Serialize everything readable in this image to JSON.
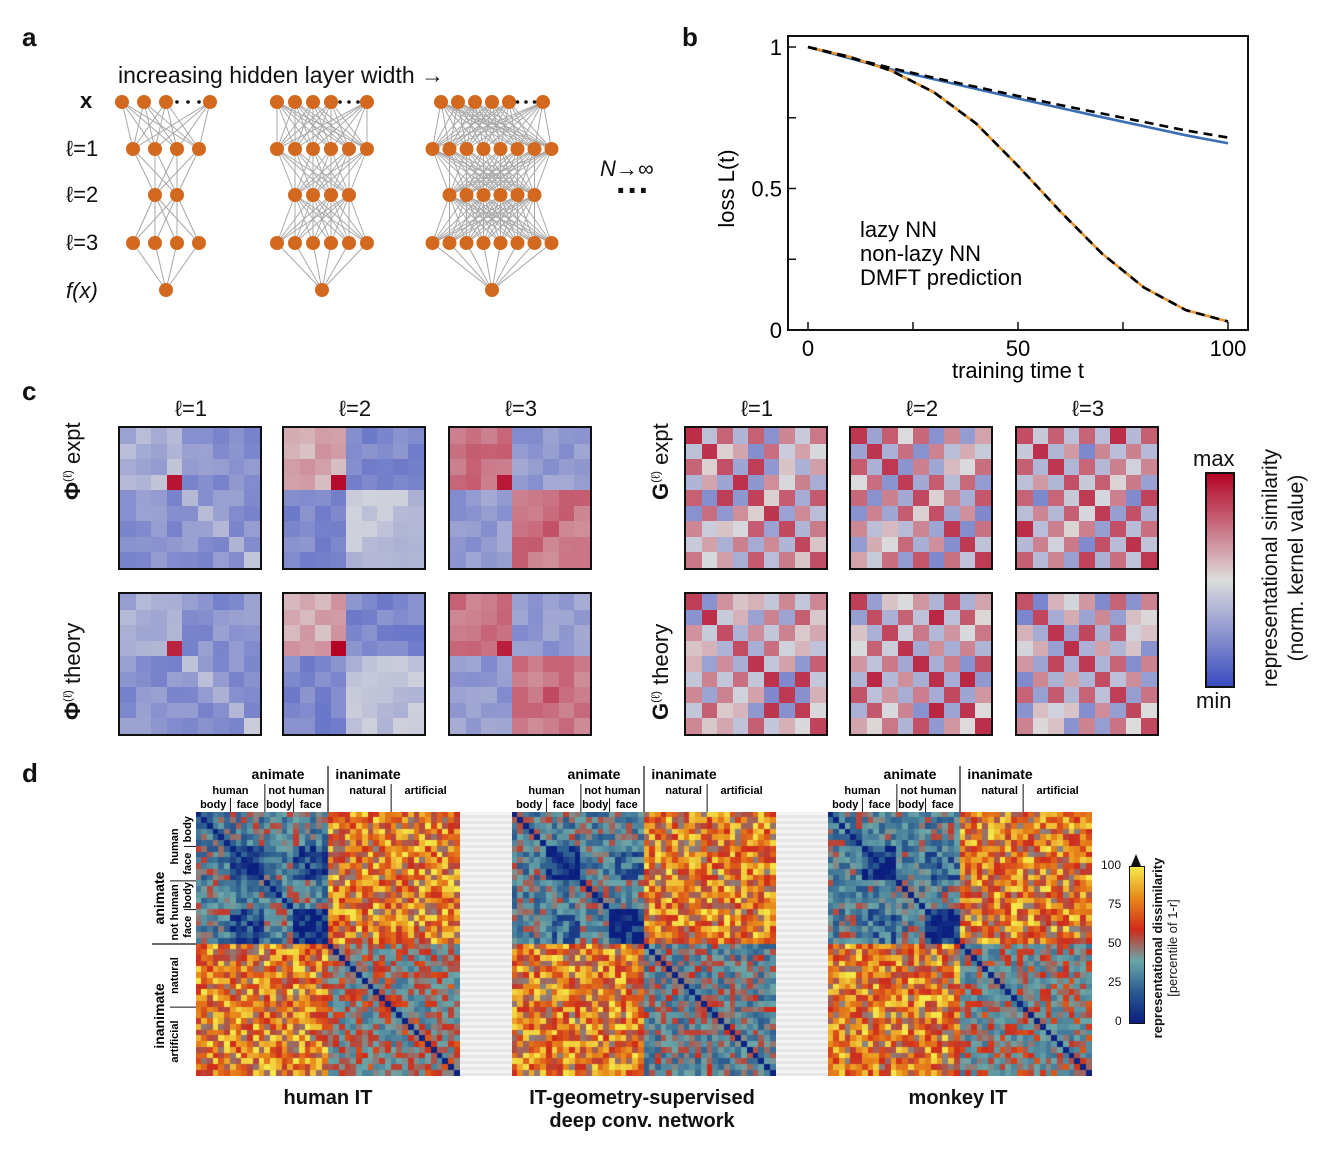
{
  "panels": {
    "a": "a",
    "b": "b",
    "c": "c",
    "d": "d"
  },
  "panel_a": {
    "arrow_label": "increasing hidden layer width →",
    "layer_labels": [
      "x",
      "ℓ=1",
      "ℓ=2",
      "ℓ=3",
      "f(x)"
    ],
    "limit_label": "N→∞",
    "dots": "···",
    "node_color": "#d2691e"
  },
  "chart_data": {
    "type": "line",
    "xlabel": "training time t",
    "ylabel": "loss L(t)",
    "xlim": [
      0,
      100
    ],
    "ylim": [
      0,
      1
    ],
    "xticks": [
      "0",
      "50",
      "100"
    ],
    "yticks": [
      "0",
      "0.5",
      "1"
    ],
    "legend": [
      "lazy NN",
      "non-lazy NN",
      "DMFT prediction"
    ],
    "series": [
      {
        "name": "lazy NN",
        "color": "#3a6fb5",
        "x": [
          0,
          10,
          20,
          30,
          40,
          50,
          60,
          70,
          80,
          90,
          100
        ],
        "y": [
          1.0,
          0.96,
          0.92,
          0.886,
          0.852,
          0.818,
          0.785,
          0.752,
          0.72,
          0.688,
          0.66
        ]
      },
      {
        "name": "non-lazy NN",
        "color": "#e8952f",
        "x": [
          0,
          10,
          20,
          30,
          40,
          50,
          60,
          70,
          80,
          90,
          100
        ],
        "y": [
          1.0,
          0.965,
          0.915,
          0.84,
          0.73,
          0.58,
          0.42,
          0.27,
          0.15,
          0.07,
          0.03
        ]
      },
      {
        "name": "DMFT prediction (lazy)",
        "color": "#000000",
        "dashed": true,
        "x": [
          0,
          10,
          20,
          30,
          40,
          50,
          60,
          70,
          80,
          90,
          100
        ],
        "y": [
          1.0,
          0.962,
          0.925,
          0.891,
          0.859,
          0.827,
          0.795,
          0.765,
          0.735,
          0.705,
          0.68
        ]
      },
      {
        "name": "DMFT prediction (non-lazy)",
        "color": "#000000",
        "dashed": true,
        "x": [
          0,
          10,
          20,
          30,
          40,
          50,
          60,
          70,
          80,
          90,
          100
        ],
        "y": [
          1.0,
          0.965,
          0.915,
          0.84,
          0.73,
          0.58,
          0.42,
          0.27,
          0.15,
          0.07,
          0.03
        ]
      }
    ]
  },
  "panel_c": {
    "layer_titles": [
      "ℓ=1",
      "ℓ=2",
      "ℓ=3"
    ],
    "phi_row_labels": [
      "Φ",
      "(ℓ)",
      " expt",
      " theory"
    ],
    "g_row_labels": [
      "G",
      "(ℓ)",
      " expt",
      " theory"
    ],
    "colorbar_max": "max",
    "colorbar_min": "min",
    "colorbar_label_1": "representational similarity",
    "colorbar_label_2": "(norm. kernel value)",
    "colors": {
      "low": "#3b4cc0",
      "mid": "#dddddd",
      "high": "#b40426"
    }
  },
  "panel_d": {
    "top_groups": {
      "animate": "animate",
      "inanimate": "inanimate"
    },
    "top_sub": {
      "human": "human",
      "not_human": "not human",
      "natural": "natural",
      "artificial": "artificial"
    },
    "top_leaf": {
      "body": "body",
      "face": "face"
    },
    "left_labels": {
      "animate": "animate",
      "inanimate": "inanimate",
      "human": "human",
      "not_human": "not human",
      "body": "body",
      "face": "face",
      "natural": "natural",
      "artificial": "artificial"
    },
    "captions": [
      "human IT",
      "IT-geometry-supervised",
      "deep conv. network",
      "monkey IT"
    ],
    "colorbar_ticks": [
      "100",
      "75",
      "50",
      "25",
      "0"
    ],
    "colorbar_label_1": "representational dissimilarity",
    "colorbar_label_2": "[percentile of 1-r]"
  }
}
